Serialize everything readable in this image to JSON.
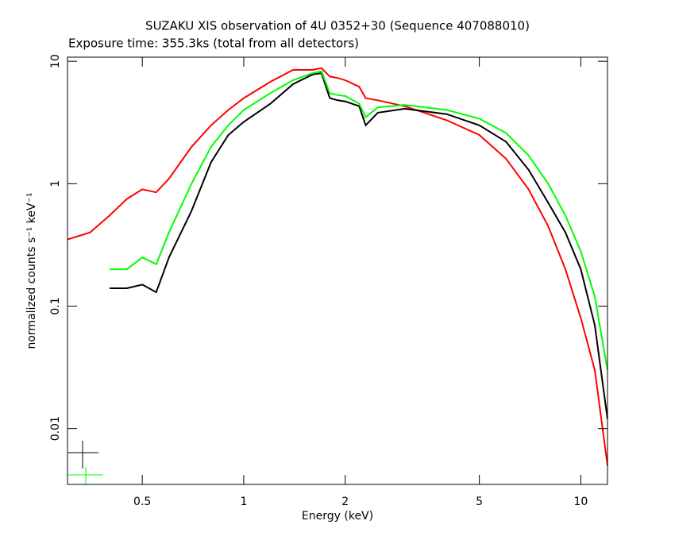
{
  "chart_data": {
    "type": "line",
    "title": "SUZAKU XIS observation of 4U 0352+30 (Sequence 407088010)",
    "subtitle": "Exposure time: 355.3ks (total from all detectors)",
    "x_label": "Energy (keV)",
    "y_label": "normalized counts s⁻¹ keV⁻¹",
    "x_log": true,
    "y_log": true,
    "xlim": [
      0.3,
      12
    ],
    "ylim": [
      0.0035,
      10.8
    ],
    "xticks": [
      0.5,
      1,
      2,
      5,
      10
    ],
    "yticks": [
      0.01,
      0.1,
      1,
      10
    ],
    "x": [
      0.3,
      0.35,
      0.4,
      0.45,
      0.5,
      0.55,
      0.6,
      0.7,
      0.8,
      0.9,
      1,
      1.2,
      1.4,
      1.6,
      1.7,
      1.8,
      1.9,
      2,
      2.2,
      2.3,
      2.5,
      3,
      4,
      5,
      6,
      7,
      8,
      9,
      10,
      11,
      12
    ],
    "series": [
      {
        "color": "#ff0000",
        "values": [
          0.35,
          0.4,
          0.55,
          0.75,
          0.9,
          0.85,
          1.1,
          2.0,
          3.0,
          4.0,
          5.0,
          6.8,
          8.5,
          8.5,
          8.8,
          7.5,
          7.3,
          7.0,
          6.2,
          5.0,
          4.8,
          4.3,
          3.3,
          2.5,
          1.6,
          0.9,
          0.45,
          0.2,
          0.08,
          0.03,
          0.005
        ]
      },
      {
        "color": "#000000",
        "values": [
          null,
          null,
          0.14,
          0.14,
          0.15,
          0.13,
          0.25,
          0.6,
          1.5,
          2.5,
          3.2,
          4.5,
          6.5,
          7.8,
          8.0,
          5.0,
          4.8,
          4.7,
          4.3,
          3.0,
          3.8,
          4.1,
          3.7,
          3.0,
          2.2,
          1.3,
          0.7,
          0.4,
          0.2,
          0.07,
          0.012
        ]
      },
      {
        "color": "#00ff00",
        "values": [
          null,
          null,
          0.2,
          0.2,
          0.25,
          0.22,
          0.4,
          1.0,
          2.0,
          3.0,
          4.0,
          5.5,
          7.0,
          8.0,
          8.3,
          5.5,
          5.3,
          5.2,
          4.5,
          3.5,
          4.2,
          4.4,
          4.0,
          3.4,
          2.6,
          1.7,
          1.0,
          0.55,
          0.28,
          0.12,
          0.03
        ]
      }
    ]
  }
}
